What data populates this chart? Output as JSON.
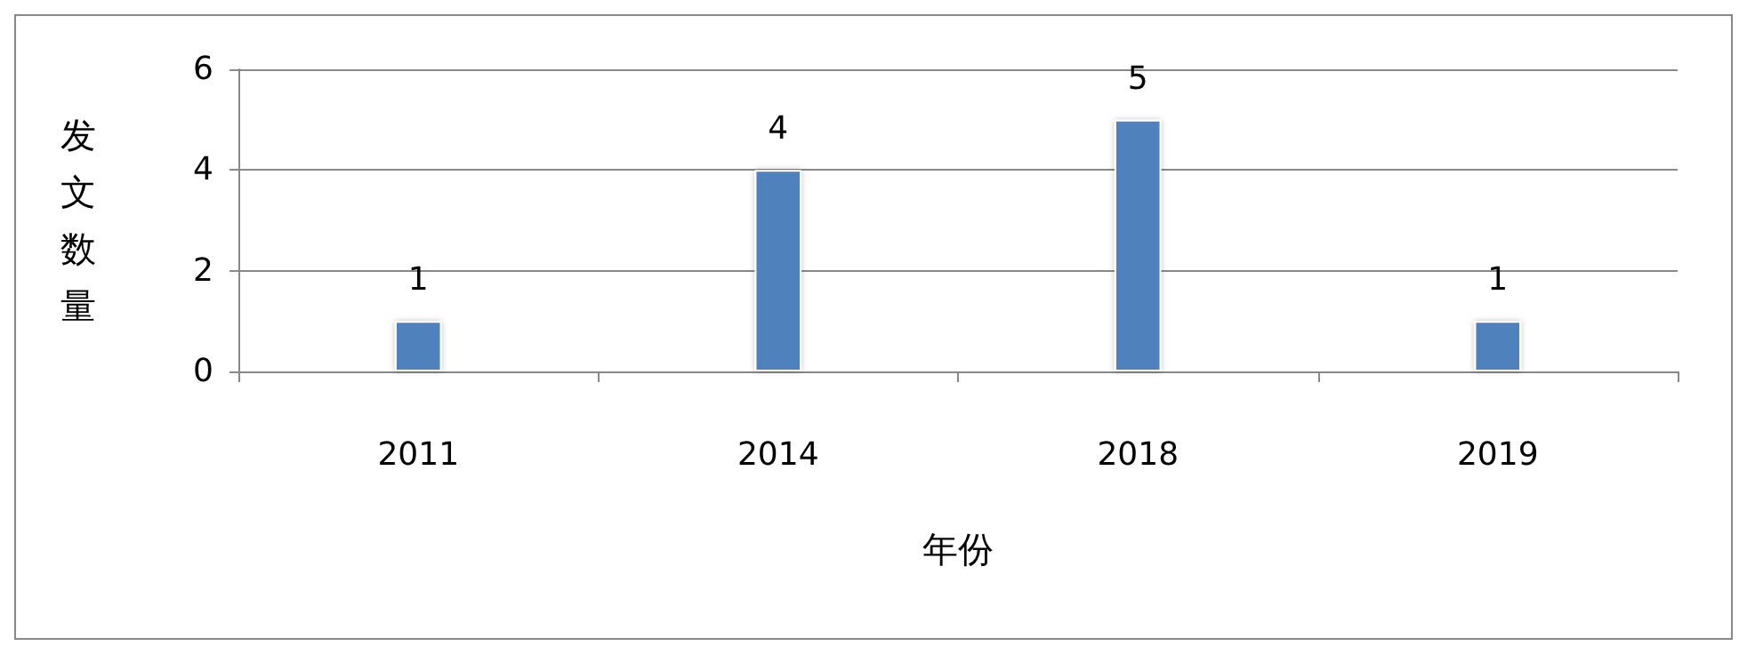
{
  "chart_data": {
    "type": "bar",
    "xlabel": "年份",
    "ylabel": "发文数量",
    "categories": [
      "2011",
      "2014",
      "2018",
      "2019"
    ],
    "values": [
      1,
      4,
      5,
      1
    ],
    "color": "#4f81bd",
    "ylim": [
      0,
      6
    ],
    "yticks": [
      0,
      2,
      4,
      6
    ],
    "grid": "y",
    "data_labels": true
  }
}
